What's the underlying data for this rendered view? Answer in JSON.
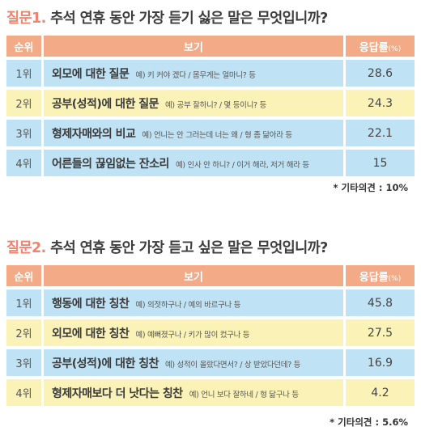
{
  "chart_data": [
    {
      "type": "table",
      "question_label": "질문1.",
      "question_text": "추석 연휴 동안 가장 듣기 싫은 말은 무엇입니까?",
      "headers": {
        "rank": "순위",
        "option": "보기",
        "percent": "응답률",
        "unit": "(%)"
      },
      "rows": [
        {
          "rank": "1위",
          "answer": "외모에 대한 질문",
          "example": "예) 키 커야 겠다 / 몸무게는 얼마니? 등",
          "value": "28.6"
        },
        {
          "rank": "2위",
          "answer": "공부(성적)에 대한 질문",
          "example": "예) 공부 잘하니? / 몇 등이니? 등",
          "value": "24.3"
        },
        {
          "rank": "3위",
          "answer": "형제자매와의 비교",
          "example": "예) 언니는 안 그러는데 너는 왜 / 형 좀 닮아라 등",
          "value": "22.1"
        },
        {
          "rank": "4위",
          "answer": "어른들의 끊임없는 잔소리",
          "example": "예) 인사 안 하니? / 이거 해라, 저거 해라 등",
          "value": "15"
        }
      ],
      "note": "* 기타의견 : 10%"
    },
    {
      "type": "table",
      "question_label": "질문2.",
      "question_text": "추석 연휴 동안 가장 듣고 싶은 말은 무엇입니까?",
      "headers": {
        "rank": "순위",
        "option": "보기",
        "percent": "응답률",
        "unit": "(%)"
      },
      "rows": [
        {
          "rank": "1위",
          "answer": "행동에 대한 칭찬",
          "example": "예) 의젓하구나 / 예의 바르구나 등",
          "value": "45.8"
        },
        {
          "rank": "2위",
          "answer": "외모에 대한 칭찬",
          "example": "예) 예뻐졌구나 / 키가 많이 컸구나 등",
          "value": "27.5"
        },
        {
          "rank": "3위",
          "answer": "공부(성적)에 대한 칭찬",
          "example": "예) 성적이 올랐다면서? / 상 받았다던데? 등",
          "value": "16.9"
        },
        {
          "rank": "4위",
          "answer": "형제자매보다 더 낫다는 칭찬",
          "example": "예) 언니 보다 잘하네 / 형 닮구나 등",
          "value": "4.2"
        }
      ],
      "note": "* 기타의견 : 5.6%"
    }
  ],
  "colors": {
    "header": "#f3aa87",
    "row_blue": "#bfe2f4",
    "row_yellow": "#fbf2b8",
    "accent": "#f1846f"
  }
}
